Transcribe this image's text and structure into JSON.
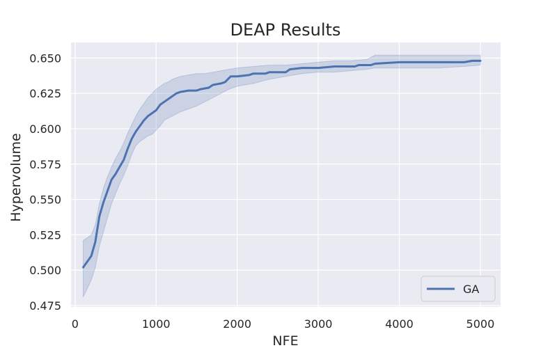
{
  "chart_data": {
    "type": "line",
    "title": "DEAP Results",
    "xlabel": "NFE",
    "ylabel": "Hypervolume",
    "xlim": [
      -50,
      5250
    ],
    "ylim": [
      0.474,
      0.661
    ],
    "xticks": [
      0,
      1000,
      2000,
      3000,
      4000,
      5000
    ],
    "yticks": [
      0.475,
      0.5,
      0.525,
      0.55,
      0.575,
      0.6,
      0.625,
      0.65
    ],
    "grid": true,
    "legend_position": "bottom-right",
    "series": [
      {
        "name": "GA",
        "color": "#4c72b0",
        "band_color": "#4c72b0",
        "points": [
          [
            100,
            0.502
          ],
          [
            200,
            0.51
          ],
          [
            250,
            0.52
          ],
          [
            300,
            0.538
          ],
          [
            350,
            0.548
          ],
          [
            400,
            0.556
          ],
          [
            450,
            0.564
          ],
          [
            500,
            0.568
          ],
          [
            550,
            0.573
          ],
          [
            600,
            0.578
          ],
          [
            650,
            0.586
          ],
          [
            700,
            0.593
          ],
          [
            750,
            0.598
          ],
          [
            800,
            0.602
          ],
          [
            850,
            0.606
          ],
          [
            900,
            0.609
          ],
          [
            950,
            0.611
          ],
          [
            1000,
            0.613
          ],
          [
            1050,
            0.617
          ],
          [
            1100,
            0.619
          ],
          [
            1150,
            0.621
          ],
          [
            1200,
            0.623
          ],
          [
            1250,
            0.625
          ],
          [
            1300,
            0.626
          ],
          [
            1400,
            0.627
          ],
          [
            1500,
            0.627
          ],
          [
            1550,
            0.628
          ],
          [
            1650,
            0.629
          ],
          [
            1700,
            0.631
          ],
          [
            1800,
            0.632
          ],
          [
            1850,
            0.633
          ],
          [
            1920,
            0.637
          ],
          [
            2000,
            0.637
          ],
          [
            2150,
            0.638
          ],
          [
            2200,
            0.639
          ],
          [
            2350,
            0.639
          ],
          [
            2400,
            0.64
          ],
          [
            2600,
            0.64
          ],
          [
            2650,
            0.642
          ],
          [
            2800,
            0.643
          ],
          [
            3000,
            0.643
          ],
          [
            3200,
            0.644
          ],
          [
            3450,
            0.644
          ],
          [
            3500,
            0.645
          ],
          [
            3650,
            0.645
          ],
          [
            3700,
            0.646
          ],
          [
            4000,
            0.647
          ],
          [
            4400,
            0.647
          ],
          [
            4500,
            0.647
          ],
          [
            4800,
            0.647
          ],
          [
            4900,
            0.648
          ],
          [
            5000,
            0.648
          ]
        ],
        "upper": [
          [
            100,
            0.521
          ],
          [
            200,
            0.525
          ],
          [
            250,
            0.532
          ],
          [
            300,
            0.547
          ],
          [
            350,
            0.558
          ],
          [
            400,
            0.566
          ],
          [
            450,
            0.573
          ],
          [
            500,
            0.579
          ],
          [
            550,
            0.584
          ],
          [
            600,
            0.59
          ],
          [
            650,
            0.597
          ],
          [
            700,
            0.603
          ],
          [
            750,
            0.609
          ],
          [
            800,
            0.614
          ],
          [
            850,
            0.618
          ],
          [
            900,
            0.622
          ],
          [
            950,
            0.625
          ],
          [
            1000,
            0.628
          ],
          [
            1050,
            0.63
          ],
          [
            1100,
            0.632
          ],
          [
            1150,
            0.633
          ],
          [
            1200,
            0.635
          ],
          [
            1250,
            0.636
          ],
          [
            1300,
            0.637
          ],
          [
            1400,
            0.638
          ],
          [
            1500,
            0.639
          ],
          [
            1600,
            0.639
          ],
          [
            1700,
            0.64
          ],
          [
            1800,
            0.641
          ],
          [
            1900,
            0.642
          ],
          [
            2000,
            0.643
          ],
          [
            2200,
            0.644
          ],
          [
            2400,
            0.645
          ],
          [
            2600,
            0.645
          ],
          [
            2800,
            0.646
          ],
          [
            3000,
            0.647
          ],
          [
            3200,
            0.648
          ],
          [
            3400,
            0.648
          ],
          [
            3600,
            0.649
          ],
          [
            3700,
            0.652
          ],
          [
            3900,
            0.652
          ],
          [
            4200,
            0.652
          ],
          [
            4500,
            0.652
          ],
          [
            4800,
            0.652
          ],
          [
            5000,
            0.652
          ]
        ],
        "lower": [
          [
            100,
            0.481
          ],
          [
            200,
            0.493
          ],
          [
            250,
            0.502
          ],
          [
            300,
            0.517
          ],
          [
            350,
            0.527
          ],
          [
            400,
            0.537
          ],
          [
            450,
            0.547
          ],
          [
            500,
            0.554
          ],
          [
            550,
            0.561
          ],
          [
            600,
            0.567
          ],
          [
            650,
            0.574
          ],
          [
            700,
            0.582
          ],
          [
            750,
            0.588
          ],
          [
            800,
            0.591
          ],
          [
            850,
            0.593
          ],
          [
            900,
            0.595
          ],
          [
            950,
            0.596
          ],
          [
            1000,
            0.599
          ],
          [
            1050,
            0.602
          ],
          [
            1100,
            0.606
          ],
          [
            1200,
            0.609
          ],
          [
            1300,
            0.612
          ],
          [
            1400,
            0.614
          ],
          [
            1500,
            0.616
          ],
          [
            1600,
            0.619
          ],
          [
            1700,
            0.622
          ],
          [
            1800,
            0.625
          ],
          [
            1900,
            0.628
          ],
          [
            2000,
            0.63
          ],
          [
            2200,
            0.632
          ],
          [
            2400,
            0.635
          ],
          [
            2600,
            0.637
          ],
          [
            2800,
            0.639
          ],
          [
            3000,
            0.64
          ],
          [
            3200,
            0.64
          ],
          [
            3400,
            0.641
          ],
          [
            3600,
            0.642
          ],
          [
            3700,
            0.643
          ],
          [
            3900,
            0.643
          ],
          [
            4200,
            0.643
          ],
          [
            4500,
            0.643
          ],
          [
            4800,
            0.644
          ],
          [
            5000,
            0.645
          ]
        ]
      }
    ]
  },
  "style": {
    "plot_background": "#eaeaf2",
    "grid_color": "#ffffff",
    "text_color": "#262626",
    "legend_background": "#eaeaf2",
    "legend_border": "#cccccc"
  }
}
